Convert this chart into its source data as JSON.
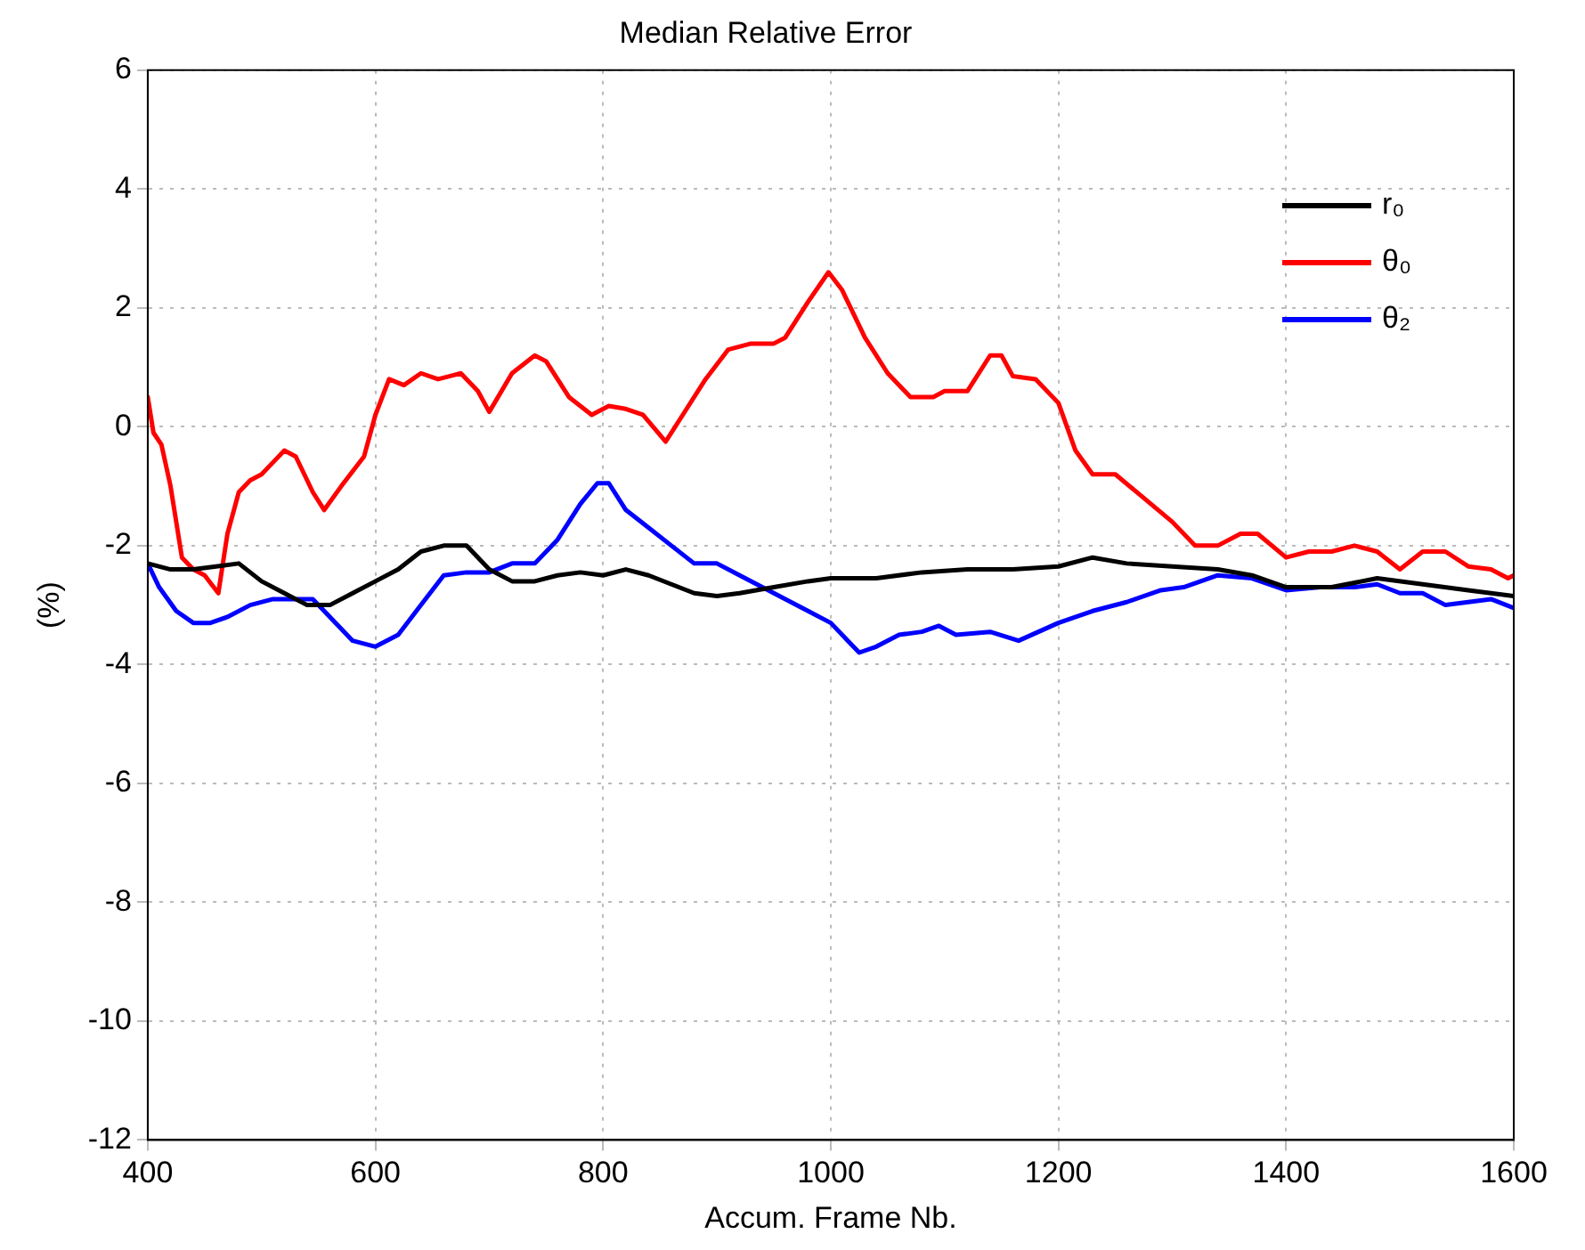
{
  "chart_data": {
    "type": "line",
    "title": "Median Relative Error",
    "xlabel": "Accum. Frame Nb.",
    "ylabel": "(%)",
    "xlim": [
      400,
      1600
    ],
    "xticks": [
      400,
      600,
      800,
      1000,
      1200,
      1400,
      1600
    ],
    "ylim": [
      -12,
      6
    ],
    "yticks": [
      -12,
      -10,
      -8,
      -6,
      -4,
      -2,
      0,
      2,
      4,
      6
    ],
    "grid": true,
    "legend": "top right",
    "marker": "none",
    "line_style": "solid",
    "series": [
      {
        "name": "r₀",
        "color": "#000000",
        "x": [
          400,
          420,
          440,
          460,
          480,
          500,
          520,
          540,
          560,
          580,
          600,
          620,
          640,
          660,
          680,
          700,
          720,
          740,
          760,
          780,
          800,
          820,
          840,
          860,
          880,
          900,
          920,
          950,
          980,
          1000,
          1040,
          1080,
          1120,
          1160,
          1200,
          1230,
          1260,
          1300,
          1340,
          1370,
          1400,
          1440,
          1480,
          1520,
          1560,
          1600
        ],
        "values": [
          -2.3,
          -2.4,
          -2.4,
          -2.35,
          -2.3,
          -2.6,
          -2.8,
          -3.0,
          -3.0,
          -2.8,
          -2.6,
          -2.4,
          -2.1,
          -2.0,
          -2.0,
          -2.4,
          -2.6,
          -2.6,
          -2.5,
          -2.45,
          -2.5,
          -2.4,
          -2.5,
          -2.65,
          -2.8,
          -2.85,
          -2.8,
          -2.7,
          -2.6,
          -2.55,
          -2.55,
          -2.45,
          -2.4,
          -2.4,
          -2.35,
          -2.2,
          -2.3,
          -2.35,
          -2.4,
          -2.5,
          -2.7,
          -2.7,
          -2.55,
          -2.65,
          -2.75,
          -2.85
        ]
      },
      {
        "name": "θ₀",
        "color": "#ff0000",
        "x": [
          400,
          405,
          412,
          420,
          430,
          440,
          450,
          462,
          470,
          480,
          490,
          500,
          510,
          520,
          530,
          545,
          555,
          570,
          590,
          600,
          612,
          625,
          640,
          655,
          675,
          690,
          700,
          720,
          740,
          750,
          770,
          790,
          805,
          820,
          835,
          855,
          870,
          890,
          910,
          930,
          950,
          960,
          980,
          998,
          1010,
          1030,
          1050,
          1070,
          1090,
          1100,
          1120,
          1140,
          1150,
          1160,
          1180,
          1200,
          1215,
          1230,
          1250,
          1275,
          1300,
          1320,
          1340,
          1360,
          1375,
          1400,
          1420,
          1440,
          1460,
          1480,
          1500,
          1520,
          1540,
          1560,
          1580,
          1595,
          1600
        ],
        "values": [
          0.5,
          -0.1,
          -0.3,
          -1.0,
          -2.2,
          -2.4,
          -2.5,
          -2.8,
          -1.8,
          -1.1,
          -0.9,
          -0.8,
          -0.6,
          -0.4,
          -0.5,
          -1.1,
          -1.4,
          -1.0,
          -0.5,
          0.2,
          0.8,
          0.7,
          0.9,
          0.8,
          0.9,
          0.6,
          0.25,
          0.9,
          1.2,
          1.1,
          0.5,
          0.2,
          0.35,
          0.3,
          0.2,
          -0.25,
          0.2,
          0.8,
          1.3,
          1.4,
          1.4,
          1.5,
          2.1,
          2.6,
          2.3,
          1.5,
          0.9,
          0.5,
          0.5,
          0.6,
          0.6,
          1.2,
          1.2,
          0.85,
          0.8,
          0.4,
          -0.4,
          -0.8,
          -0.8,
          -1.2,
          -1.6,
          -2.0,
          -2.0,
          -1.8,
          -1.8,
          -2.2,
          -2.1,
          -2.1,
          -2.0,
          -2.1,
          -2.4,
          -2.1,
          -2.1,
          -2.35,
          -2.4,
          -2.55,
          -2.5
        ]
      },
      {
        "name": "θ₂",
        "color": "#0000ff",
        "x": [
          400,
          410,
          425,
          440,
          455,
          470,
          490,
          510,
          530,
          545,
          560,
          580,
          600,
          620,
          640,
          660,
          680,
          700,
          720,
          740,
          760,
          780,
          795,
          805,
          820,
          840,
          860,
          880,
          900,
          920,
          950,
          980,
          1000,
          1015,
          1025,
          1040,
          1060,
          1080,
          1095,
          1110,
          1140,
          1165,
          1200,
          1230,
          1260,
          1290,
          1310,
          1340,
          1370,
          1400,
          1430,
          1460,
          1480,
          1500,
          1520,
          1540,
          1560,
          1580,
          1600
        ],
        "values": [
          -2.3,
          -2.7,
          -3.1,
          -3.3,
          -3.3,
          -3.2,
          -3.0,
          -2.9,
          -2.9,
          -2.9,
          -3.2,
          -3.6,
          -3.7,
          -3.5,
          -3.0,
          -2.5,
          -2.45,
          -2.45,
          -2.3,
          -2.3,
          -1.9,
          -1.3,
          -0.95,
          -0.95,
          -1.4,
          -1.7,
          -2.0,
          -2.3,
          -2.3,
          -2.5,
          -2.8,
          -3.1,
          -3.3,
          -3.6,
          -3.8,
          -3.7,
          -3.5,
          -3.45,
          -3.35,
          -3.5,
          -3.45,
          -3.6,
          -3.3,
          -3.1,
          -2.95,
          -2.75,
          -2.7,
          -2.5,
          -2.55,
          -2.75,
          -2.7,
          -2.7,
          -2.65,
          -2.8,
          -2.8,
          -3.0,
          -2.95,
          -2.9,
          -3.05
        ]
      }
    ]
  }
}
